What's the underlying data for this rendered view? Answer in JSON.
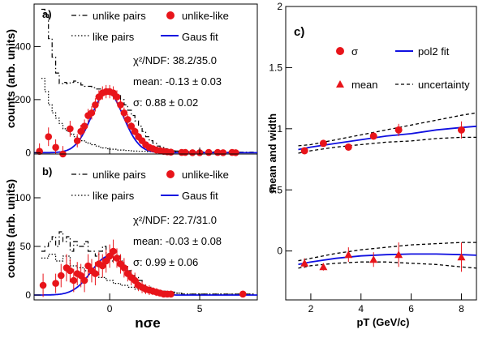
{
  "chart_data": [
    {
      "type": "line",
      "panel_label": "a)",
      "ylabel": "counts (arb. units)",
      "xlim": [
        -4.2,
        8.2
      ],
      "ylim": [
        -5,
        560
      ],
      "x_ticks": [
        0,
        5
      ],
      "y_ticks": [
        0,
        200,
        400
      ],
      "legend": [
        {
          "name": "unlike pairs",
          "style": "dash-dot"
        },
        {
          "name": "unlike-like",
          "style": "red-marker"
        },
        {
          "name": "like pairs",
          "style": "dotted"
        },
        {
          "name": "Gaus fit",
          "style": "blue-line"
        }
      ],
      "annotations": [
        "χ²/NDF: 38.2/35.0",
        "mean: -0.13 ±  0.03",
        "σ:  0.88 ±  0.02"
      ],
      "fit": {
        "amplitude": 228,
        "mean": -0.13,
        "sigma": 0.88
      },
      "series": [
        {
          "name": "unlike pairs",
          "kind": "dashdot_step",
          "x": [
            -3.8,
            -3.6,
            -3.4,
            -3.2,
            -3.0,
            -2.8,
            -2.6,
            -2.4,
            -2.2,
            -2.0,
            -1.8,
            -1.6,
            -1.4,
            -1.2,
            -1.0,
            -0.8,
            -0.6,
            -0.4,
            -0.2,
            0.0,
            0.2,
            0.4,
            0.6,
            0.8,
            1.0,
            1.2,
            1.4,
            1.6,
            1.8,
            2.0,
            2.2,
            2.4,
            2.6,
            2.8,
            3.0,
            3.2,
            3.4,
            3.6,
            3.8,
            4.0,
            4.5,
            5.0,
            6.0,
            7.0,
            8.0
          ],
          "y": [
            540,
            520,
            430,
            360,
            300,
            260,
            265,
            260,
            265,
            270,
            265,
            255,
            250,
            250,
            245,
            240,
            240,
            235,
            240,
            230,
            225,
            215,
            200,
            180,
            160,
            140,
            120,
            100,
            80,
            60,
            45,
            35,
            25,
            20,
            15,
            10,
            8,
            6,
            5,
            4,
            3,
            3,
            2,
            2,
            2
          ]
        },
        {
          "name": "like pairs",
          "kind": "dotted_step",
          "x": [
            -3.8,
            -3.6,
            -3.4,
            -3.2,
            -3.0,
            -2.8,
            -2.6,
            -2.4,
            -2.2,
            -2.0,
            -1.8,
            -1.6,
            -1.4,
            -1.2,
            -1.0,
            -0.8,
            -0.6,
            -0.4,
            -0.2,
            0.0,
            0.4,
            0.8,
            1.2,
            1.6,
            2.0,
            3.0,
            4.0,
            6.0,
            8.0
          ],
          "y": [
            280,
            230,
            180,
            150,
            130,
            110,
            90,
            80,
            70,
            60,
            50,
            45,
            40,
            35,
            30,
            25,
            20,
            18,
            15,
            13,
            10,
            8,
            6,
            5,
            4,
            3,
            2,
            1,
            1
          ]
        },
        {
          "name": "unlike-like",
          "x": [
            -3.9,
            -3.4,
            -3.0,
            -2.6,
            -2.2,
            -1.8,
            -1.6,
            -1.4,
            -1.2,
            -1.0,
            -0.8,
            -0.6,
            -0.4,
            -0.2,
            0.0,
            0.2,
            0.4,
            0.6,
            0.8,
            1.0,
            1.2,
            1.4,
            1.6,
            1.8,
            2.0,
            2.2,
            2.4,
            2.6,
            2.8,
            3.0,
            3.2,
            3.4,
            4.0,
            4.2,
            4.6,
            5.0,
            5.5,
            6.0,
            6.3,
            6.8,
            7.0
          ],
          "y": [
            5,
            60,
            20,
            -5,
            90,
            45,
            80,
            100,
            140,
            150,
            180,
            210,
            225,
            230,
            230,
            225,
            210,
            180,
            150,
            125,
            100,
            80,
            60,
            45,
            30,
            20,
            15,
            10,
            8,
            5,
            3,
            2,
            1,
            1,
            0,
            0,
            1,
            1,
            0,
            1,
            0
          ],
          "err": [
            30,
            35,
            30,
            30,
            30,
            25,
            25,
            25,
            25,
            25,
            25,
            25,
            25,
            25,
            25,
            25,
            25,
            20,
            20,
            20,
            15,
            15,
            15,
            10,
            10,
            8,
            8,
            6,
            6,
            5,
            5,
            5,
            4,
            4,
            3,
            3,
            3,
            3,
            3,
            3,
            3
          ]
        }
      ]
    },
    {
      "type": "line",
      "panel_label": "b)",
      "ylabel": "counts (arb. units)",
      "xlabel": "nσe",
      "xlim": [
        -4.2,
        8.2
      ],
      "ylim": [
        -5,
        145
      ],
      "x_ticks": [
        0,
        5
      ],
      "y_ticks": [
        0,
        50,
        100
      ],
      "legend": [
        {
          "name": "unlike pairs",
          "style": "dash-dot"
        },
        {
          "name": "unlike-like",
          "style": "red-marker"
        },
        {
          "name": "like pairs",
          "style": "dotted"
        },
        {
          "name": "Gaus fit",
          "style": "blue-line"
        }
      ],
      "annotations": [
        "χ²/NDF: 22.7/31.0",
        "mean: -0.03 ±  0.08",
        "σ:  0.99 ±  0.06"
      ],
      "fit": {
        "amplitude": 40,
        "mean": -0.03,
        "sigma": 0.99
      },
      "series": [
        {
          "name": "unlike pairs",
          "kind": "dashdot_step",
          "x": [
            -3.8,
            -3.6,
            -3.4,
            -3.2,
            -3.0,
            -2.8,
            -2.6,
            -2.4,
            -2.2,
            -2.0,
            -1.8,
            -1.6,
            -1.4,
            -1.2,
            -1.0,
            -0.8,
            -0.6,
            -0.4,
            -0.2,
            0.0,
            0.2,
            0.4,
            0.6,
            0.8,
            1.0,
            1.2,
            1.4,
            1.6,
            1.8,
            2.0,
            2.4,
            2.8,
            3.2,
            3.6,
            4.0,
            5.0,
            6.0,
            8.0
          ],
          "y": [
            45,
            50,
            55,
            60,
            50,
            65,
            55,
            60,
            45,
            55,
            50,
            50,
            55,
            45,
            45,
            40,
            45,
            50,
            40,
            35,
            45,
            40,
            35,
            30,
            25,
            20,
            18,
            15,
            10,
            8,
            5,
            4,
            3,
            2,
            1,
            1,
            1,
            1
          ]
        },
        {
          "name": "like pairs",
          "kind": "dotted_step",
          "x": [
            -3.8,
            -3.4,
            -3.0,
            -2.6,
            -2.2,
            -1.8,
            -1.4,
            -1.0,
            -0.6,
            -0.2,
            0.2,
            0.6,
            1.0,
            1.4,
            1.8,
            2.2,
            2.6,
            3.0,
            4.0,
            6.0,
            8.0
          ],
          "y": [
            38,
            42,
            35,
            40,
            30,
            28,
            25,
            22,
            18,
            15,
            12,
            10,
            8,
            6,
            5,
            4,
            3,
            2,
            1,
            1,
            1
          ]
        },
        {
          "name": "unlike-like",
          "x": [
            -3.7,
            -3.0,
            -2.7,
            -2.4,
            -2.2,
            -2.0,
            -1.8,
            -1.6,
            -1.4,
            -1.2,
            -1.0,
            -0.8,
            -0.6,
            -0.4,
            -0.2,
            0.0,
            0.2,
            0.4,
            0.6,
            0.8,
            1.0,
            1.2,
            1.4,
            1.6,
            1.8,
            2.0,
            2.2,
            2.4,
            2.6,
            2.8,
            3.0,
            3.2,
            3.4,
            7.4
          ],
          "y": [
            10,
            12,
            20,
            28,
            25,
            15,
            22,
            20,
            15,
            30,
            25,
            22,
            32,
            30,
            35,
            40,
            45,
            38,
            32,
            28,
            22,
            18,
            15,
            10,
            8,
            6,
            5,
            4,
            3,
            2,
            1,
            1,
            1,
            1
          ],
          "err": [
            12,
            10,
            12,
            14,
            12,
            12,
            12,
            12,
            12,
            12,
            12,
            12,
            12,
            12,
            12,
            12,
            12,
            10,
            10,
            10,
            8,
            8,
            8,
            6,
            6,
            5,
            5,
            4,
            4,
            3,
            3,
            3,
            3,
            3
          ]
        }
      ]
    },
    {
      "type": "scatter",
      "panel_label": "c)",
      "ylabel": "mean and width",
      "xlabel": "pT (GeV/c)",
      "xlim": [
        1.0,
        8.6
      ],
      "ylim": [
        -0.4,
        2.0
      ],
      "x_ticks": [
        2,
        4,
        6,
        8
      ],
      "y_ticks": [
        0,
        0.5,
        1,
        1.5,
        2
      ],
      "y_tick_labels": [
        "0",
        "0.5",
        "1",
        "1.5",
        "2"
      ],
      "legend": [
        {
          "name": "σ",
          "style": "red-circle"
        },
        {
          "name": "pol2 fit",
          "style": "blue-line"
        },
        {
          "name": "mean",
          "style": "red-triangle"
        },
        {
          "name": "uncertainty",
          "style": "dashed"
        }
      ],
      "series": [
        {
          "name": "σ",
          "marker": "circle",
          "x": [
            1.75,
            2.5,
            3.5,
            4.5,
            5.5,
            8.0
          ],
          "y": [
            0.82,
            0.88,
            0.85,
            0.94,
            0.99,
            0.99
          ],
          "err": [
            0.02,
            0.02,
            0.02,
            0.03,
            0.05,
            0.07
          ]
        },
        {
          "name": "mean",
          "marker": "triangle",
          "x": [
            1.75,
            2.5,
            3.5,
            4.5,
            5.5,
            8.0
          ],
          "y": [
            -0.1,
            -0.13,
            -0.03,
            -0.07,
            -0.03,
            -0.05
          ],
          "err": [
            0.04,
            0.03,
            0.06,
            0.06,
            0.1,
            0.12
          ]
        },
        {
          "name": "pol2 fit",
          "kind": "curve",
          "x": [
            1.5,
            2,
            3,
            4,
            5,
            6,
            7,
            8,
            8.6
          ],
          "y": [
            0.83,
            0.85,
            0.88,
            0.91,
            0.94,
            0.96,
            0.99,
            1.01,
            1.02
          ]
        },
        {
          "name": "uncertainty",
          "kind": "dashed",
          "x": [
            1.5,
            2,
            3,
            4,
            5,
            6,
            7,
            8,
            8.6
          ],
          "y": [
            0.86,
            0.87,
            0.91,
            0.95,
            0.99,
            1.03,
            1.07,
            1.11,
            1.13
          ]
        },
        {
          "name": "uncertainty",
          "kind": "dashed",
          "x": [
            1.5,
            2,
            3,
            4,
            5,
            6,
            7,
            8,
            8.6
          ],
          "y": [
            0.8,
            0.82,
            0.85,
            0.87,
            0.89,
            0.9,
            0.92,
            0.93,
            0.93
          ]
        },
        {
          "name": "pol2 fit",
          "kind": "curve",
          "x": [
            1.5,
            2,
            3,
            4,
            5,
            6,
            7,
            8,
            8.6
          ],
          "y": [
            -0.11,
            -0.09,
            -0.06,
            -0.04,
            -0.03,
            -0.025,
            -0.025,
            -0.03,
            -0.035
          ]
        },
        {
          "name": "uncertainty",
          "kind": "dashed",
          "x": [
            1.5,
            2,
            3,
            4,
            5,
            6,
            7,
            8,
            8.6
          ],
          "y": [
            -0.08,
            -0.06,
            -0.02,
            0.01,
            0.03,
            0.05,
            0.06,
            0.07,
            0.07
          ]
        },
        {
          "name": "uncertainty",
          "kind": "dashed",
          "x": [
            1.5,
            2,
            3,
            4,
            5,
            6,
            7,
            8,
            8.6
          ],
          "y": [
            -0.14,
            -0.12,
            -0.1,
            -0.09,
            -0.09,
            -0.1,
            -0.11,
            -0.13,
            -0.14
          ]
        }
      ]
    }
  ]
}
